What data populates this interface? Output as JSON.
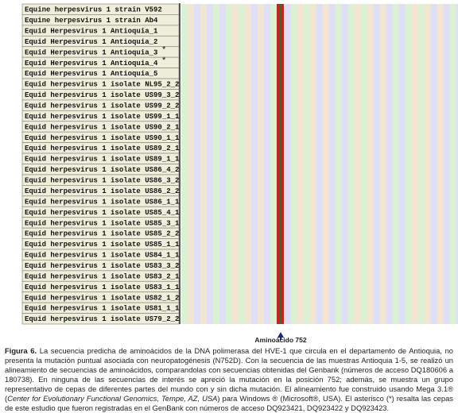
{
  "figure": {
    "sequences": [
      {
        "label": "Equine herpesvirus 1 strain V592"
      },
      {
        "label": "Equine herpesvirus 1 strain Ab4"
      },
      {
        "label": "Equid Herpesvirus 1 Antioquia_1"
      },
      {
        "label": "Equid Herpesvirus 1 Antioquia_2"
      },
      {
        "label": "Equid Herpesvirus 1 Antioquia_3",
        "mark": "*"
      },
      {
        "label": "Equid Herpesvirus 1 Antioquia_4",
        "mark": "*"
      },
      {
        "label": "Equid Herpesvirus 1 Antioquia_5"
      },
      {
        "label": "Equid herpesvirus 1 isolate NL95_2_2"
      },
      {
        "label": "Equid herpesvirus 1 isolate US99_3_2"
      },
      {
        "label": "Equid herpesvirus 1 isolate US99_2_2"
      },
      {
        "label": "Equid herpesvirus 1 isolate US99_1_1"
      },
      {
        "label": "Equid herpesvirus 1 isolate US90_2_1"
      },
      {
        "label": "Equid herpesvirus 1 isolate US90_1_1"
      },
      {
        "label": "Equid herpesvirus 1 isolate US89_2_1"
      },
      {
        "label": "Equid herpesvirus 1 isolate US89_1_1"
      },
      {
        "label": "Equid herpesvirus 1 isolate US86_4_2"
      },
      {
        "label": "Equid herpesvirus 1 isolate US86_3_2"
      },
      {
        "label": "Equid herpesvirus 1 isolate US86_2_2"
      },
      {
        "label": "Equid herpesvirus 1 isolate US86_1_1"
      },
      {
        "label": "Equid herpesvirus 1 isolate US85_4_1"
      },
      {
        "label": "Equid herpesvirus 1 isolate US85_3_1"
      },
      {
        "label": "Equid herpesvirus 1 isolate US85_2_2"
      },
      {
        "label": "Equid herpesvirus 1 isolate US85_1_1"
      },
      {
        "label": "Equid herpesvirus 1 isolate US84_1_1"
      },
      {
        "label": "Equid herpesvirus 1 isolate US83_3_2"
      },
      {
        "label": "Equid herpesvirus 1 isolate US83_2_1"
      },
      {
        "label": "Equid herpesvirus 1 isolate US83_1_1"
      },
      {
        "label": "Equid herpesvirus 1 isolate US82_1_2"
      },
      {
        "label": "Equid herpesvirus 1 isolate US81_1_1"
      },
      {
        "label": "Equid herpesvirus 1 isolate US79_2_2"
      }
    ],
    "position_label": "Aminoácido 752",
    "caption": {
      "label": "Figura 6.",
      "text_1": "La secuencia predicha de aminoácidos de la DNA polimerasa del HVE-1 que circula en el departamento de Antioquia, no presenta la mutación puntual asociada con neuropatogénesis (N752D). Con la secuencia de las muestras Antioquia 1-5, se realizó un alineamiento de secuencias de aminoácidos, comparandolas con secuencias obtenidas del Genbank (números de acceso DQ180606 a 180738). En ninguna de las secuencias de interés se apreció la mutación en la posición 752; además, se muestra un grupo representativo de cepas de diferentes partes del mundo con y sin dicha mutación. El alineamiento fue construido usando Mega 3.1® (",
      "italic": "Center for Evolutionary Functional Genomics, Tempe, AZ, USA",
      "text_2": ") para Windows ® (Microsoft®, USA). El asterisco (*) resalta las cepas de este estudio que fueron registradas en el GenBank con números de acceso DQ923421, DQ923422 y DQ923423."
    }
  }
}
